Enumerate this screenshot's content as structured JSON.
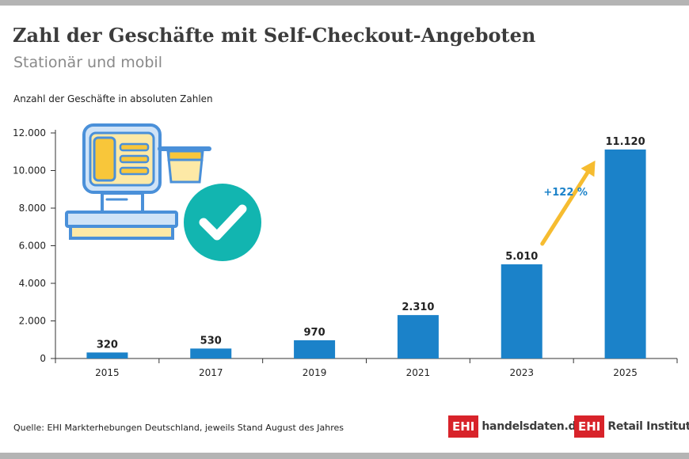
{
  "header": {
    "title": "Zahl der Geschäfte mit Self-Checkout-Angeboten",
    "subtitle": "Stationär und mobil",
    "unit_label": "Anzahl der Geschäfte in absoluten Zahlen"
  },
  "footer": {
    "source": "Quelle: EHI Markterhebungen Deutschland, jeweils Stand August des Jahres",
    "logo1_box": "EHI",
    "logo1_text": "handelsdaten.de",
    "logo2_box": "EHI",
    "logo2_text": "Retail Institute",
    "logo2_mark": "®"
  },
  "colors": {
    "bar": "#1b82c9",
    "arrow": "#f6bc30",
    "growth_text": "#1b82c9",
    "brand_red": "#d8232a",
    "check_circle": "#12b5b0",
    "register_blue": "#4a90d9",
    "register_fill": "#cfe3f7",
    "register_yellow": "#f8c63a",
    "register_light": "#fde9a6"
  },
  "chart_data": {
    "type": "bar",
    "categories": [
      "2015",
      "2017",
      "2019",
      "2021",
      "2023",
      "2025"
    ],
    "values": [
      320,
      530,
      970,
      2310,
      5010,
      11120
    ],
    "value_labels": [
      "320",
      "530",
      "970",
      "2.310",
      "5.010",
      "11.120"
    ],
    "ylim": [
      0,
      12000
    ],
    "yticks": [
      0,
      2000,
      4000,
      6000,
      8000,
      10000,
      12000
    ],
    "ytick_labels": [
      "0",
      "2.000",
      "4.000",
      "6.000",
      "8.000",
      "10.000",
      "12.000"
    ],
    "grid": false,
    "annotation": {
      "text": "+122 %",
      "from_category": "2023",
      "to_category": "2025"
    },
    "illustration": [
      "cash-register-icon",
      "checkmark-icon"
    ]
  }
}
